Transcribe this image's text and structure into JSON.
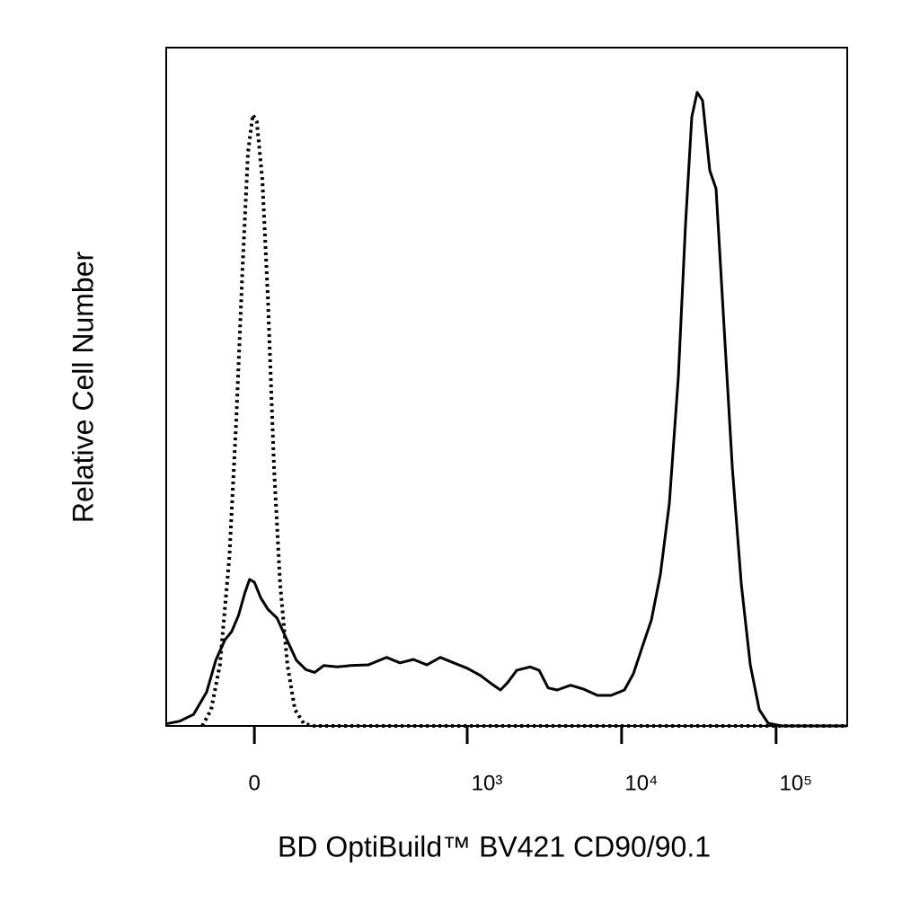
{
  "chart_data": {
    "type": "line",
    "xlabel": "BD OptiBuild™ BV421 CD90/90.1",
    "ylabel": "Relative Cell Number",
    "xscale": "asinh",
    "xlim": [
      -145,
      288700
    ],
    "ylim": [
      0,
      100
    ],
    "xticks": [
      0,
      {
        "value": 1000,
        "label": "10³"
      },
      {
        "value": 10000,
        "label": "10⁴"
      },
      {
        "value": 100000,
        "label": "10⁵"
      }
    ],
    "series": [
      {
        "color": "#000000",
        "line_style": "solid",
        "x": [
          -145,
          -114,
          -87,
          -65,
          -51,
          -38,
          -29,
          -20,
          -12,
          -6,
          0,
          8,
          17,
          29,
          41,
          56,
          71,
          86,
          103,
          132,
          166,
          222,
          295,
          363,
          445,
          546,
          668,
          818,
          1001,
          1224,
          1457,
          1644,
          1830,
          2093,
          2560,
          2926,
          3345,
          3823,
          4674,
          5715,
          6989,
          8540,
          10433,
          11930,
          13640,
          15590,
          17830,
          20380,
          23300,
          25930,
          28480,
          30870,
          33440,
          37240,
          40900,
          45530,
          52080,
          59520,
          68040,
          77780,
          88900,
          108700,
          288700
        ],
        "values": [
          0.3,
          0.7,
          1.7,
          5.0,
          9.7,
          12.7,
          13.9,
          16.3,
          19.6,
          21.6,
          21.2,
          18.9,
          17.2,
          15.9,
          13.0,
          9.7,
          8.3,
          7.9,
          8.9,
          8.7,
          8.9,
          9.0,
          10.1,
          9.3,
          9.8,
          9.0,
          10.1,
          9.3,
          8.5,
          7.4,
          6.1,
          5.3,
          6.4,
          8.2,
          8.7,
          8.2,
          5.6,
          5.3,
          6.0,
          5.4,
          4.5,
          4.5,
          5.3,
          7.7,
          11.7,
          15.6,
          22.3,
          32.8,
          51.4,
          73.9,
          89.8,
          93.4,
          92.2,
          81.9,
          79.2,
          60.7,
          38.1,
          20.9,
          9.0,
          2.4,
          0.4,
          0,
          0
        ]
      },
      {
        "color": "#000000",
        "line_style": "dotted",
        "x": [
          -72,
          -58,
          -45,
          -32,
          -23,
          -15,
          -8,
          -2,
          3,
          10,
          17,
          25,
          33,
          43,
          54,
          68,
          86,
          288700
        ],
        "values": [
          0,
          2.4,
          9.0,
          24.9,
          44.8,
          67.3,
          84.5,
          90.1,
          89.1,
          80.5,
          63.3,
          38.1,
          20.9,
          9.0,
          2.4,
          0.3,
          0,
          0
        ]
      }
    ]
  }
}
